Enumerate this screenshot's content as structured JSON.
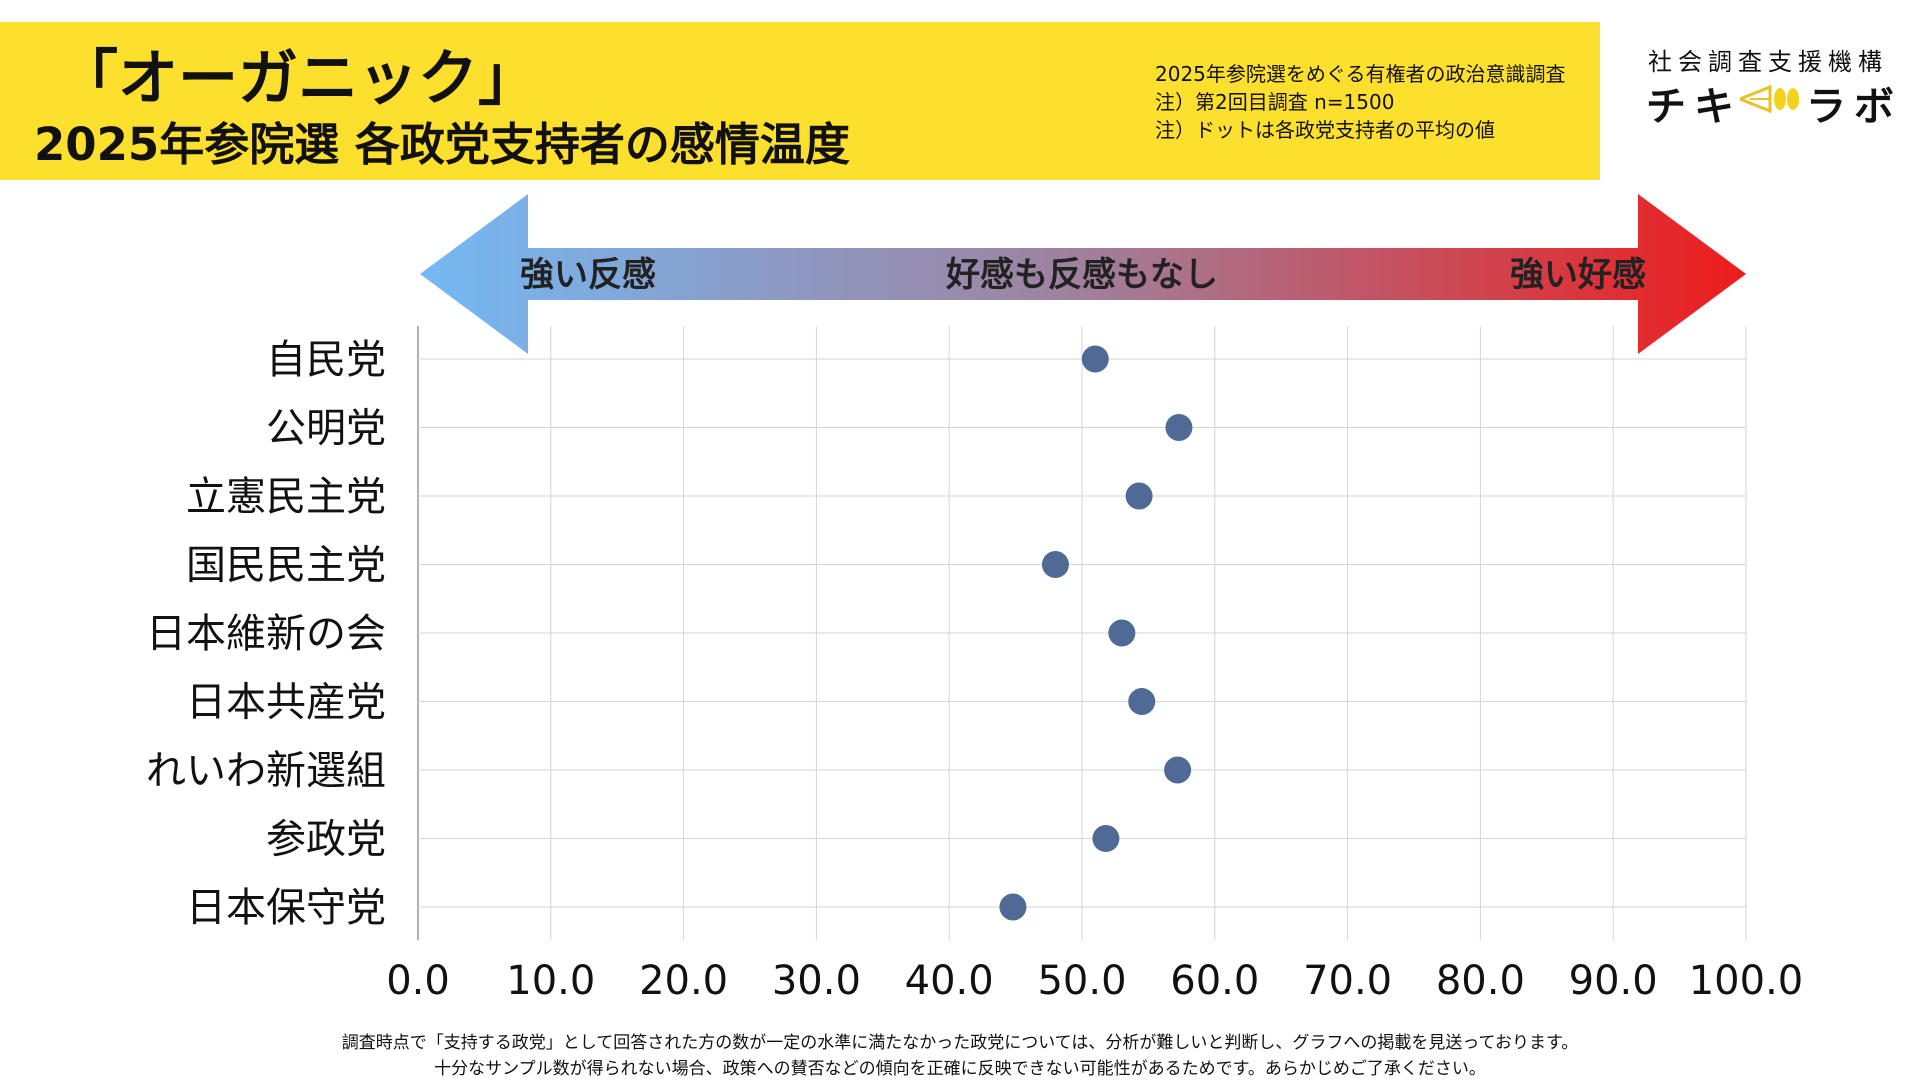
{
  "header": {
    "title_line1": "「オーガニック」",
    "title_line2": "2025年参院選 各政党支持者の感情温度",
    "notes": [
      "2025年参院選をめぐる有権者の政治意識調査",
      "注）第2回目調査 n=1500",
      "注）ドットは各政党支持者の平均の値"
    ],
    "colors": {
      "band": "#fde02e"
    }
  },
  "brand": {
    "org": "社会調査支援機構",
    "logo_left": "チキ",
    "logo_right": "ラボ",
    "logo_icon": "megaphone-icon"
  },
  "scale_arrow": {
    "left_label": "強い反感",
    "center_label": "好感も反感もなし",
    "right_label": "強い好感",
    "colors": {
      "left": "#74b9f4",
      "center": "#a0809c",
      "right": "#ee1c1c"
    }
  },
  "chart_data": {
    "type": "scatter",
    "categories": [
      "自民党",
      "公明党",
      "立憲民主党",
      "国民民主党",
      "日本維新の会",
      "日本共産党",
      "れいわ新選組",
      "参政党",
      "日本保守党"
    ],
    "values": [
      51.0,
      57.3,
      54.3,
      48.0,
      53.0,
      54.5,
      57.2,
      51.8,
      44.8
    ],
    "xlim": [
      0,
      100
    ],
    "x_ticks": [
      "0.0",
      "10.0",
      "20.0",
      "30.0",
      "40.0",
      "50.0",
      "60.0",
      "70.0",
      "80.0",
      "90.0",
      "100.0"
    ],
    "grid": true,
    "marker_color": "#4f6a95"
  },
  "footnote": [
    "調査時点で「支持する政党」として回答された方の数が一定の水準に満たなかった政党については、分析が難しいと判断し、グラフへの掲載を見送っております。",
    "十分なサンプル数が得られない場合、政策への賛否などの傾向を正確に反映できない可能性があるためです。あらかじめご了承ください。"
  ]
}
